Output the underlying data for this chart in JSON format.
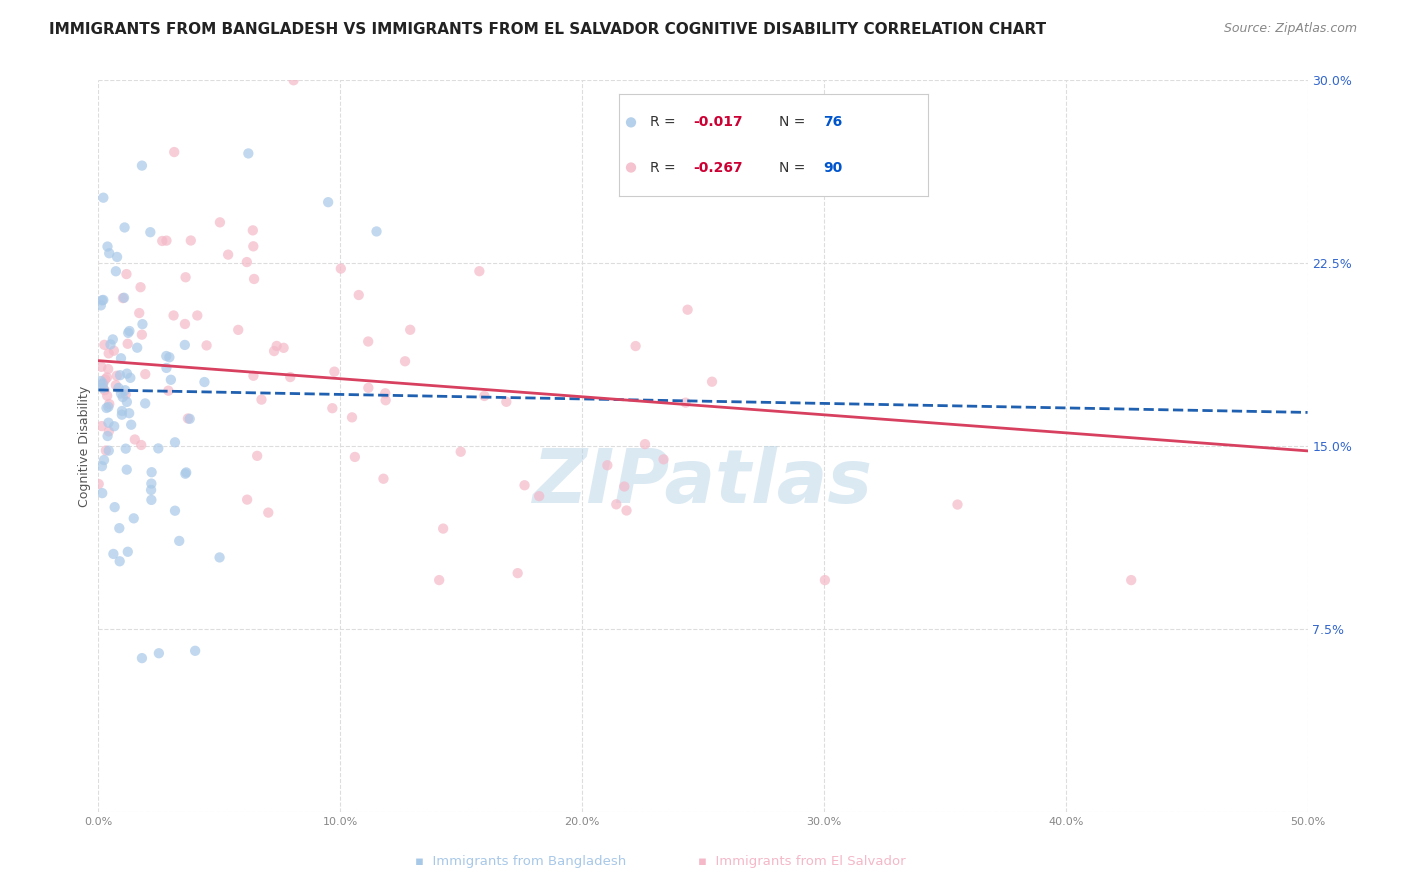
{
  "title": "IMMIGRANTS FROM BANGLADESH VS IMMIGRANTS FROM EL SALVADOR COGNITIVE DISABILITY CORRELATION CHART",
  "source": "Source: ZipAtlas.com",
  "ylabel": "Cognitive Disability",
  "ytick_labels": [
    "",
    "7.5%",
    "15.0%",
    "22.5%",
    "30.0%"
  ],
  "ytick_values": [
    0,
    0.075,
    0.15,
    0.225,
    0.3
  ],
  "xlim": [
    0,
    0.5
  ],
  "ylim": [
    0,
    0.3
  ],
  "bangladesh_R": -0.017,
  "bangladesh_N": 76,
  "elsalvador_R": -0.267,
  "elsalvador_N": 90,
  "watermark": "ZIPatlas",
  "watermark_color": "#b8d4e8",
  "scatter_alpha": 0.7,
  "scatter_size": 55,
  "bangladesh_color": "#a8c8e8",
  "elsalvador_color": "#f4b8c8",
  "trendline_bangladesh_color": "#2060b0",
  "trendline_elsalvador_color": "#d84060",
  "grid_color": "#dddddd",
  "title_fontsize": 11,
  "source_fontsize": 9,
  "axis_label_fontsize": 9,
  "legend_R_color": "#cc0033",
  "legend_N_color": "#0055cc",
  "legend_text_color": "#333333",
  "right_axis_color": "#3366cc"
}
